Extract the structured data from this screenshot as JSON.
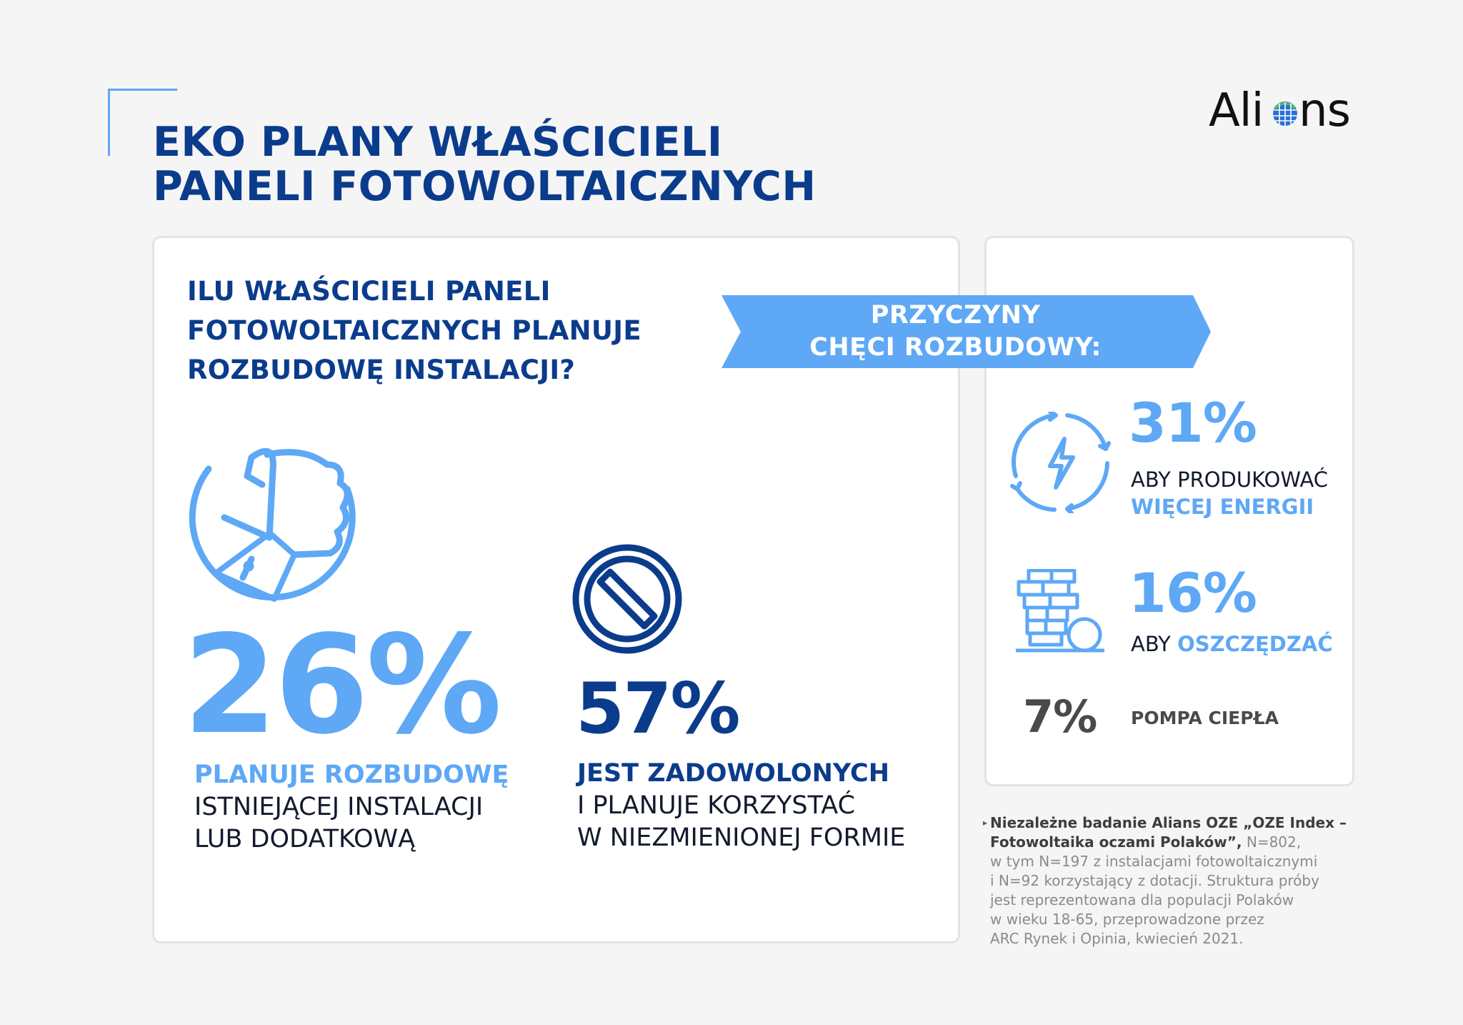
{
  "title": {
    "line1": "EKO PLANY WŁAŚCICIELI",
    "line2": "PANELI FOTOWOLTAICZNYCH"
  },
  "logo": {
    "text_left": "Ali",
    "text_right": "ns",
    "alt": "Alians"
  },
  "colors": {
    "dark_blue": "#0b3c8c",
    "light_blue": "#5ea8f5",
    "background": "#f5f5f6",
    "gray_text": "#4a4a4a"
  },
  "question": {
    "line1": "ILU WŁAŚCICIELI PANELI",
    "line2": "FOTOWOLTAICZNYCH PLANUJE",
    "line3": "ROZBUDOWĘ INSTALACJI?"
  },
  "reasons_banner": {
    "line1": "PRZYCZYNY",
    "line2": "CHĘCI ROZBUDOWY:"
  },
  "stat_expand": {
    "icon": "thumbs-up-icon",
    "value": "26%",
    "line1": "PLANUJE ROZBUDOWĘ",
    "line2": "ISTNIEJĄCEJ INSTALACJI",
    "line3": "LUB DODATKOWĄ"
  },
  "stat_keep": {
    "icon": "prohibited-icon",
    "value": "57%",
    "line1": "JEST ZADOWOLONYCH",
    "line2": "I PLANUJE KORZYSTAĆ",
    "line3": "W NIEZMIENIONEJ FORMIE"
  },
  "reasons": [
    {
      "icon": "energy-icon",
      "value": "31%",
      "label_plain": "ABY PRODUKOWAĆ",
      "label_accent": "WIĘCEJ ENERGII"
    },
    {
      "icon": "savings-icon",
      "value": "16%",
      "label_plain": "ABY",
      "label_accent": "OSZCZĘDZAĆ"
    },
    {
      "icon": "",
      "value": "7%",
      "label_plain": "POMPA CIEPŁA",
      "label_accent": ""
    }
  ],
  "footnote": {
    "marker": "▸",
    "bold_line1": "Niezależne badanie Alians OZE „OZE Index –",
    "bold_line2": "Fotowoltaika oczami Polaków”,",
    "line2_rest": " N=802,",
    "line3": "w tym N=197 z instalacjami fotowoltaicznymi",
    "line4": "i N=92 korzystający z dotacji. Struktura próby",
    "line5": "jest reprezentowana dla populacji Polaków",
    "line6": "w wieku 18-65, przeprowadzone przez",
    "line7": "ARC Rynek i Opinia, kwiecień 2021."
  }
}
